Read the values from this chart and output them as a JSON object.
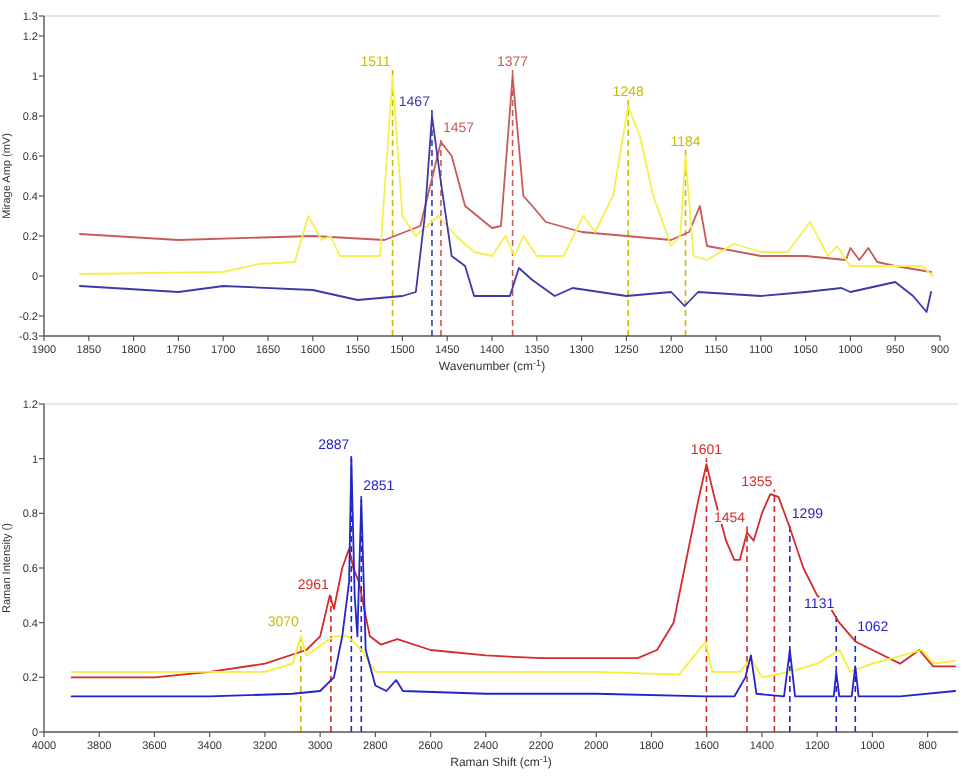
{
  "chart_data": [
    {
      "type": "line",
      "xlabel": "Wavenumber (cm$^{-1}$)",
      "ylabel": "Mirage Amp (mV)",
      "xlim": [
        1900,
        900
      ],
      "ylim": [
        -0.3,
        1.3
      ],
      "xticks": [
        1900,
        1850,
        1800,
        1750,
        1700,
        1650,
        1600,
        1550,
        1500,
        1450,
        1400,
        1350,
        1300,
        1250,
        1200,
        1150,
        1100,
        1050,
        1000,
        950,
        900
      ],
      "yticks": [
        -0.3,
        -0.2,
        0,
        0.2,
        0.4,
        0.6,
        0.8,
        1,
        1.2,
        1.3
      ],
      "grid": false,
      "marker": "none",
      "line_style": "solid",
      "series": [
        {
          "color": "#c85a5a",
          "x": [
            1860,
            1750,
            1600,
            1520,
            1480,
            1457,
            1445,
            1430,
            1400,
            1390,
            1377,
            1365,
            1355,
            1340,
            1300,
            1250,
            1200,
            1180,
            1168,
            1160,
            1100,
            1050,
            1005,
            1000,
            990,
            980,
            970,
            950,
            910
          ],
          "values": [
            0.21,
            0.18,
            0.2,
            0.18,
            0.25,
            0.67,
            0.6,
            0.35,
            0.24,
            0.25,
            1.0,
            0.4,
            0.35,
            0.27,
            0.22,
            0.2,
            0.18,
            0.22,
            0.35,
            0.15,
            0.1,
            0.1,
            0.08,
            0.14,
            0.08,
            0.14,
            0.07,
            0.05,
            0.02
          ]
        },
        {
          "color": "#f5f050",
          "x": [
            1860,
            1700,
            1660,
            1620,
            1605,
            1590,
            1580,
            1570,
            1525,
            1511,
            1500,
            1485,
            1460,
            1440,
            1420,
            1400,
            1385,
            1375,
            1365,
            1350,
            1320,
            1298,
            1285,
            1265,
            1248,
            1235,
            1220,
            1200,
            1190,
            1184,
            1175,
            1160,
            1130,
            1100,
            1070,
            1045,
            1025,
            1015,
            1000,
            940,
            920,
            908
          ],
          "values": [
            0.01,
            0.02,
            0.06,
            0.07,
            0.3,
            0.18,
            0.2,
            0.1,
            0.1,
            1.0,
            0.3,
            0.2,
            0.3,
            0.2,
            0.12,
            0.1,
            0.2,
            0.1,
            0.2,
            0.1,
            0.1,
            0.3,
            0.22,
            0.4,
            0.85,
            0.7,
            0.4,
            0.15,
            0.2,
            0.6,
            0.1,
            0.08,
            0.16,
            0.12,
            0.12,
            0.27,
            0.1,
            0.15,
            0.05,
            0.05,
            0.05,
            0
          ]
        },
        {
          "color": "#3a3aa8",
          "x": [
            1860,
            1750,
            1700,
            1600,
            1550,
            1500,
            1485,
            1475,
            1467,
            1458,
            1445,
            1430,
            1420,
            1380,
            1370,
            1355,
            1330,
            1310,
            1250,
            1200,
            1185,
            1170,
            1100,
            1050,
            1010,
            1000,
            950,
            930,
            915,
            910
          ],
          "values": [
            -0.05,
            -0.08,
            -0.05,
            -0.07,
            -0.12,
            -0.1,
            -0.08,
            0.3,
            0.8,
            0.5,
            0.1,
            0.05,
            -0.1,
            -0.1,
            0.04,
            -0.02,
            -0.1,
            -0.06,
            -0.1,
            -0.08,
            -0.15,
            -0.08,
            -0.1,
            -0.08,
            -0.06,
            -0.08,
            -0.03,
            -0.1,
            -0.18,
            -0.08
          ]
        }
      ],
      "ref_lines": [
        {
          "axis": "x",
          "value": 1511,
          "label": "1511",
          "color": "#c9bb00",
          "line_style": "dashed"
        },
        {
          "axis": "x",
          "value": 1467,
          "label": "1467",
          "color": "#3a3aa8",
          "line_style": "dashed"
        },
        {
          "axis": "x",
          "value": 1457,
          "label": "1457",
          "color": "#c85a5a",
          "line_style": "dashed"
        },
        {
          "axis": "x",
          "value": 1377,
          "label": "1377",
          "color": "#c85a5a",
          "line_style": "dashed"
        },
        {
          "axis": "x",
          "value": 1248,
          "label": "1248",
          "color": "#c9bb00",
          "line_style": "dashed"
        },
        {
          "axis": "x",
          "value": 1184,
          "label": "1184",
          "color": "#c9bb00",
          "line_style": "dashed"
        }
      ]
    },
    {
      "type": "line",
      "xlabel": "Raman Shift (cm$^{-1}$)",
      "ylabel": "Raman Intensity ()",
      "xlim": [
        4000,
        690
      ],
      "ylim": [
        0,
        1.2
      ],
      "xticks": [
        4000,
        3800,
        3600,
        3400,
        3200,
        3000,
        2800,
        2600,
        2400,
        2200,
        2000,
        1800,
        1600,
        1400,
        1200,
        1000,
        800
      ],
      "yticks": [
        0,
        0.2,
        0.4,
        0.6,
        0.8,
        1,
        1.2
      ],
      "grid": false,
      "marker": "none",
      "line_style": "solid",
      "series": [
        {
          "color": "#d42a2a",
          "x": [
            3900,
            3600,
            3400,
            3200,
            3050,
            3000,
            2965,
            2950,
            2920,
            2895,
            2880,
            2860,
            2850,
            2820,
            2780,
            2720,
            2600,
            2400,
            2200,
            2000,
            1850,
            1780,
            1720,
            1680,
            1630,
            1601,
            1570,
            1530,
            1500,
            1480,
            1454,
            1430,
            1400,
            1370,
            1340,
            1300,
            1250,
            1200,
            1150,
            1120,
            1060,
            1000,
            900,
            830,
            780,
            700
          ],
          "values": [
            0.2,
            0.2,
            0.22,
            0.25,
            0.3,
            0.35,
            0.5,
            0.45,
            0.6,
            0.67,
            0.6,
            0.55,
            0.5,
            0.35,
            0.32,
            0.34,
            0.3,
            0.28,
            0.27,
            0.27,
            0.27,
            0.3,
            0.4,
            0.6,
            0.85,
            0.98,
            0.85,
            0.7,
            0.63,
            0.63,
            0.73,
            0.7,
            0.8,
            0.87,
            0.86,
            0.75,
            0.6,
            0.5,
            0.45,
            0.4,
            0.33,
            0.3,
            0.25,
            0.3,
            0.24,
            0.24
          ]
        },
        {
          "color": "#f5f030",
          "x": [
            3900,
            3500,
            3200,
            3100,
            3070,
            3050,
            2950,
            2900,
            2850,
            2800,
            2600,
            2000,
            1700,
            1605,
            1580,
            1480,
            1440,
            1400,
            1300,
            1200,
            1120,
            1080,
            1000,
            820,
            780,
            700
          ],
          "values": [
            0.22,
            0.22,
            0.22,
            0.25,
            0.35,
            0.28,
            0.35,
            0.35,
            0.3,
            0.22,
            0.22,
            0.22,
            0.21,
            0.33,
            0.22,
            0.22,
            0.27,
            0.2,
            0.22,
            0.25,
            0.3,
            0.22,
            0.25,
            0.3,
            0.25,
            0.26
          ]
        },
        {
          "color": "#2424c8",
          "x": [
            3900,
            3400,
            3100,
            3000,
            2950,
            2920,
            2895,
            2887,
            2875,
            2865,
            2851,
            2835,
            2800,
            2760,
            2725,
            2700,
            2400,
            2000,
            1600,
            1500,
            1460,
            1440,
            1420,
            1320,
            1299,
            1280,
            1140,
            1131,
            1120,
            1075,
            1062,
            1050,
            900,
            700
          ],
          "values": [
            0.13,
            0.13,
            0.14,
            0.15,
            0.2,
            0.35,
            0.55,
            1.0,
            0.5,
            0.35,
            0.85,
            0.3,
            0.17,
            0.15,
            0.19,
            0.15,
            0.14,
            0.14,
            0.13,
            0.13,
            0.2,
            0.28,
            0.14,
            0.13,
            0.3,
            0.13,
            0.13,
            0.22,
            0.13,
            0.13,
            0.24,
            0.13,
            0.13,
            0.15
          ]
        }
      ],
      "ref_lines": [
        {
          "axis": "x",
          "value": 3070,
          "label": "3070",
          "color": "#c9bb00",
          "line_style": "dashed"
        },
        {
          "axis": "x",
          "value": 2961,
          "label": "2961",
          "color": "#d42a2a",
          "line_style": "dashed"
        },
        {
          "axis": "x",
          "value": 2887,
          "label": "2887",
          "color": "#2424c8",
          "line_style": "dashed"
        },
        {
          "axis": "x",
          "value": 2851,
          "label": "2851",
          "color": "#2424c8",
          "line_style": "dashed"
        },
        {
          "axis": "x",
          "value": 1601,
          "label": "1601",
          "color": "#d42a2a",
          "line_style": "dashed"
        },
        {
          "axis": "x",
          "value": 1454,
          "label": "1454",
          "color": "#d42a2a",
          "line_style": "dashed"
        },
        {
          "axis": "x",
          "value": 1355,
          "label": "1355",
          "color": "#d42a2a",
          "line_style": "dashed"
        },
        {
          "axis": "x",
          "value": 1299,
          "label": "1299",
          "color": "#2424c8",
          "line_style": "dashed"
        },
        {
          "axis": "x",
          "value": 1131,
          "label": "1131",
          "color": "#2424c8",
          "line_style": "dashed"
        },
        {
          "axis": "x",
          "value": 1062,
          "label": "1062",
          "color": "#2424c8",
          "line_style": "dashed"
        }
      ]
    }
  ]
}
